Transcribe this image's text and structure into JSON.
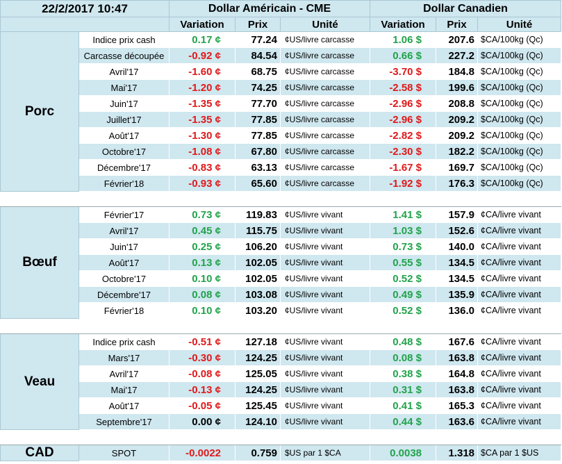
{
  "header": {
    "timestamp": "22/2/2017 10:47",
    "section_us": "Dollar Américain - CME",
    "section_ca": "Dollar Canadien",
    "col_variation": "Variation",
    "col_prix": "Prix",
    "col_unite": "Unité"
  },
  "colors": {
    "positive": "#22a34b",
    "negative": "#e0191a",
    "header_bg": "#cfe7ef"
  },
  "groups": [
    {
      "name": "Porc",
      "rows": [
        {
          "label": "Indice prix cash",
          "us_var": "0.17 ¢",
          "us_dir": "pos",
          "us_prix": "77.24",
          "us_unit": "¢US/livre carcasse",
          "ca_var": "1.06 $",
          "ca_dir": "pos",
          "ca_prix": "207.6",
          "ca_unit": "$CA/100kg (Qc)"
        },
        {
          "label": "Carcasse découpée",
          "us_var": "-0.92 ¢",
          "us_dir": "neg",
          "us_prix": "84.54",
          "us_unit": "¢US/livre carcasse",
          "ca_var": "0.66 $",
          "ca_dir": "pos",
          "ca_prix": "227.2",
          "ca_unit": "$CA/100kg (Qc)"
        },
        {
          "label": "Avril'17",
          "us_var": "-1.60 ¢",
          "us_dir": "neg",
          "us_prix": "68.75",
          "us_unit": "¢US/livre carcasse",
          "ca_var": "-3.70 $",
          "ca_dir": "neg",
          "ca_prix": "184.8",
          "ca_unit": "$CA/100kg (Qc)"
        },
        {
          "label": "Mai'17",
          "us_var": "-1.20 ¢",
          "us_dir": "neg",
          "us_prix": "74.25",
          "us_unit": "¢US/livre carcasse",
          "ca_var": "-2.58 $",
          "ca_dir": "neg",
          "ca_prix": "199.6",
          "ca_unit": "$CA/100kg (Qc)"
        },
        {
          "label": "Juin'17",
          "us_var": "-1.35 ¢",
          "us_dir": "neg",
          "us_prix": "77.70",
          "us_unit": "¢US/livre carcasse",
          "ca_var": "-2.96 $",
          "ca_dir": "neg",
          "ca_prix": "208.8",
          "ca_unit": "$CA/100kg (Qc)"
        },
        {
          "label": "Juillet'17",
          "us_var": "-1.35 ¢",
          "us_dir": "neg",
          "us_prix": "77.85",
          "us_unit": "¢US/livre carcasse",
          "ca_var": "-2.96 $",
          "ca_dir": "neg",
          "ca_prix": "209.2",
          "ca_unit": "$CA/100kg (Qc)"
        },
        {
          "label": "Août'17",
          "us_var": "-1.30 ¢",
          "us_dir": "neg",
          "us_prix": "77.85",
          "us_unit": "¢US/livre carcasse",
          "ca_var": "-2.82 $",
          "ca_dir": "neg",
          "ca_prix": "209.2",
          "ca_unit": "$CA/100kg (Qc)"
        },
        {
          "label": "Octobre'17",
          "us_var": "-1.08 ¢",
          "us_dir": "neg",
          "us_prix": "67.80",
          "us_unit": "¢US/livre carcasse",
          "ca_var": "-2.30 $",
          "ca_dir": "neg",
          "ca_prix": "182.2",
          "ca_unit": "$CA/100kg (Qc)"
        },
        {
          "label": "Décembre'17",
          "us_var": "-0.83 ¢",
          "us_dir": "neg",
          "us_prix": "63.13",
          "us_unit": "¢US/livre carcasse",
          "ca_var": "-1.67 $",
          "ca_dir": "neg",
          "ca_prix": "169.7",
          "ca_unit": "$CA/100kg (Qc)"
        },
        {
          "label": "Février'18",
          "us_var": "-0.93 ¢",
          "us_dir": "neg",
          "us_prix": "65.60",
          "us_unit": "¢US/livre carcasse",
          "ca_var": "-1.92 $",
          "ca_dir": "neg",
          "ca_prix": "176.3",
          "ca_unit": "$CA/100kg (Qc)"
        }
      ]
    },
    {
      "name": "Bœuf",
      "rows": [
        {
          "label": "Février'17",
          "us_var": "0.73 ¢",
          "us_dir": "pos",
          "us_prix": "119.83",
          "us_unit": "¢US/livre vivant",
          "ca_var": "1.41 $",
          "ca_dir": "pos",
          "ca_prix": "157.9",
          "ca_unit": "¢CA/livre vivant"
        },
        {
          "label": "Avril'17",
          "us_var": "0.45 ¢",
          "us_dir": "pos",
          "us_prix": "115.75",
          "us_unit": "¢US/livre vivant",
          "ca_var": "1.03 $",
          "ca_dir": "pos",
          "ca_prix": "152.6",
          "ca_unit": "¢CA/livre vivant"
        },
        {
          "label": "Juin'17",
          "us_var": "0.25 ¢",
          "us_dir": "pos",
          "us_prix": "106.20",
          "us_unit": "¢US/livre vivant",
          "ca_var": "0.73 $",
          "ca_dir": "pos",
          "ca_prix": "140.0",
          "ca_unit": "¢CA/livre vivant"
        },
        {
          "label": "Août'17",
          "us_var": "0.13 ¢",
          "us_dir": "pos",
          "us_prix": "102.05",
          "us_unit": "¢US/livre vivant",
          "ca_var": "0.55 $",
          "ca_dir": "pos",
          "ca_prix": "134.5",
          "ca_unit": "¢CA/livre vivant"
        },
        {
          "label": "Octobre'17",
          "us_var": "0.10 ¢",
          "us_dir": "pos",
          "us_prix": "102.05",
          "us_unit": "¢US/livre vivant",
          "ca_var": "0.52 $",
          "ca_dir": "pos",
          "ca_prix": "134.5",
          "ca_unit": "¢CA/livre vivant"
        },
        {
          "label": "Décembre'17",
          "us_var": "0.08 ¢",
          "us_dir": "pos",
          "us_prix": "103.08",
          "us_unit": "¢US/livre vivant",
          "ca_var": "0.49 $",
          "ca_dir": "pos",
          "ca_prix": "135.9",
          "ca_unit": "¢CA/livre vivant"
        },
        {
          "label": "Février'18",
          "us_var": "0.10 ¢",
          "us_dir": "pos",
          "us_prix": "103.20",
          "us_unit": "¢US/livre vivant",
          "ca_var": "0.52 $",
          "ca_dir": "pos",
          "ca_prix": "136.0",
          "ca_unit": "¢CA/livre vivant"
        }
      ]
    },
    {
      "name": "Veau",
      "rows": [
        {
          "label": "Indice prix cash",
          "us_var": "-0.51 ¢",
          "us_dir": "neg",
          "us_prix": "127.18",
          "us_unit": "¢US/livre vivant",
          "ca_var": "0.48 $",
          "ca_dir": "pos",
          "ca_prix": "167.6",
          "ca_unit": "¢CA/livre vivant"
        },
        {
          "label": "Mars'17",
          "us_var": "-0.30 ¢",
          "us_dir": "neg",
          "us_prix": "124.25",
          "us_unit": "¢US/livre vivant",
          "ca_var": "0.08 $",
          "ca_dir": "pos",
          "ca_prix": "163.8",
          "ca_unit": "¢CA/livre vivant"
        },
        {
          "label": "Avril'17",
          "us_var": "-0.08 ¢",
          "us_dir": "neg",
          "us_prix": "125.05",
          "us_unit": "¢US/livre vivant",
          "ca_var": "0.38 $",
          "ca_dir": "pos",
          "ca_prix": "164.8",
          "ca_unit": "¢CA/livre vivant"
        },
        {
          "label": "Mai'17",
          "us_var": "-0.13 ¢",
          "us_dir": "neg",
          "us_prix": "124.25",
          "us_unit": "¢US/livre vivant",
          "ca_var": "0.31 $",
          "ca_dir": "pos",
          "ca_prix": "163.8",
          "ca_unit": "¢CA/livre vivant"
        },
        {
          "label": "Août'17",
          "us_var": "-0.05 ¢",
          "us_dir": "neg",
          "us_prix": "125.45",
          "us_unit": "¢US/livre vivant",
          "ca_var": "0.41 $",
          "ca_dir": "pos",
          "ca_prix": "165.3",
          "ca_unit": "¢CA/livre vivant"
        },
        {
          "label": "Septembre'17",
          "us_var": "0.00 ¢",
          "us_dir": "zero",
          "us_prix": "124.10",
          "us_unit": "¢US/livre vivant",
          "ca_var": "0.44 $",
          "ca_dir": "pos",
          "ca_prix": "163.6",
          "ca_unit": "¢CA/livre vivant"
        }
      ]
    }
  ],
  "cad": {
    "name": "CAD",
    "label": "SPOT",
    "us_var": "-0.0022",
    "us_dir": "neg",
    "us_prix": "0.759",
    "us_unit": "$US par 1 $CA",
    "ca_var": "0.0038",
    "ca_dir": "pos",
    "ca_prix": "1.318",
    "ca_unit": "$CA par 1 $US"
  }
}
